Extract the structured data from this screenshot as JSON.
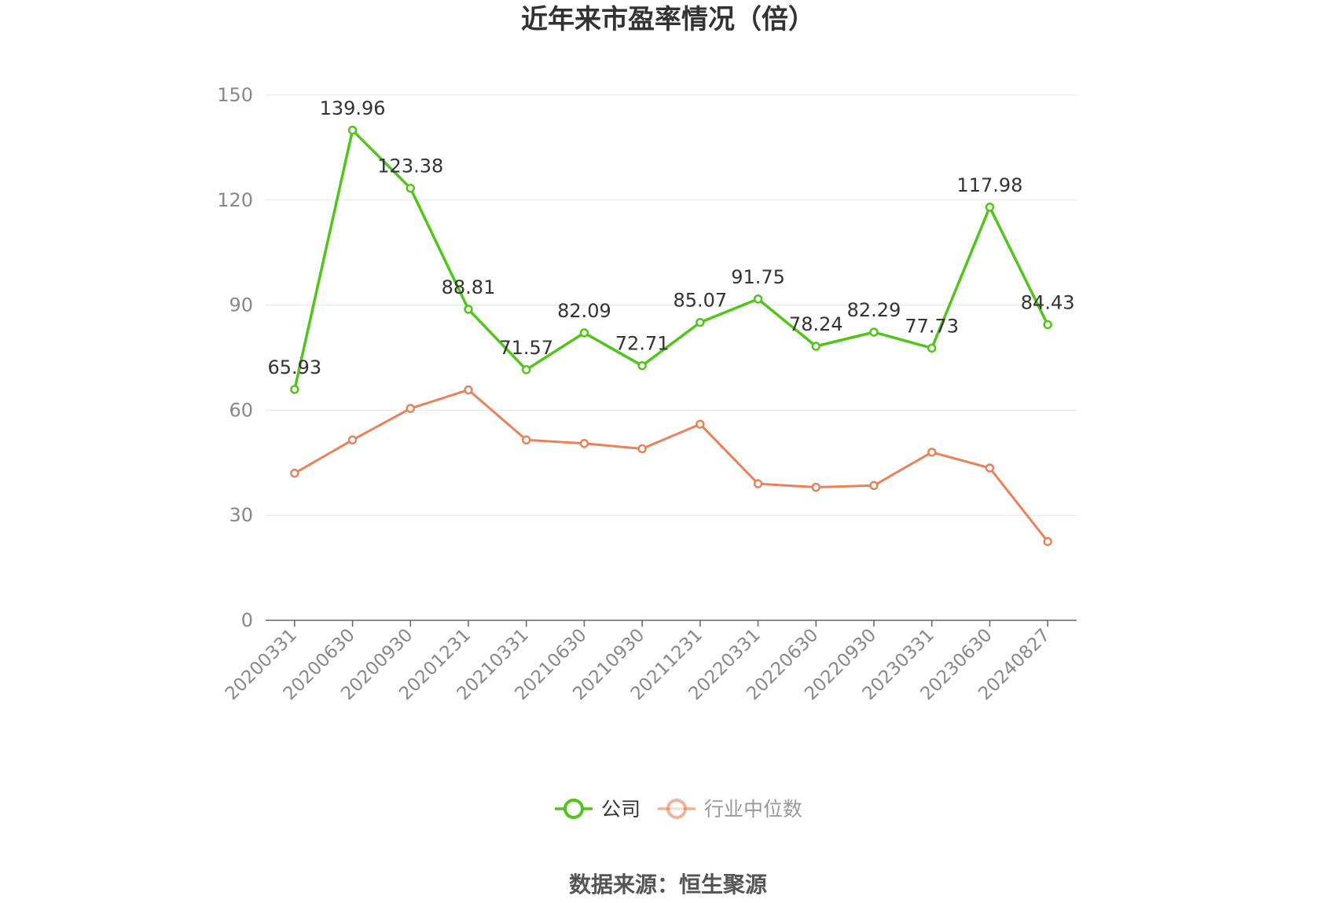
{
  "chart_data": {
    "type": "line",
    "title": "近年来市盈率情况（倍）",
    "categories": [
      "20200331",
      "20200630",
      "20200930",
      "20201231",
      "20210331",
      "20210630",
      "20210930",
      "20211231",
      "20220331",
      "20220630",
      "20220930",
      "20230331",
      "20230630",
      "20240827"
    ],
    "ylim": [
      0,
      150
    ],
    "yticks": [
      0,
      30,
      60,
      90,
      120,
      150
    ],
    "grid": true,
    "legend_position": "bottom",
    "series": [
      {
        "name": "公司",
        "color": "#52c41a",
        "show_labels": true,
        "values": [
          65.93,
          139.96,
          123.38,
          88.81,
          71.57,
          82.09,
          72.71,
          85.07,
          91.75,
          78.24,
          82.29,
          77.73,
          117.98,
          84.43
        ]
      },
      {
        "name": "行业中位数",
        "color": "#e8825a",
        "show_labels": false,
        "values": [
          42.0,
          51.5,
          60.5,
          65.8,
          51.5,
          50.5,
          49.0,
          56.0,
          39.0,
          38.0,
          38.5,
          48.0,
          43.5,
          22.5
        ]
      }
    ]
  },
  "source": "数据来源：恒生聚源"
}
